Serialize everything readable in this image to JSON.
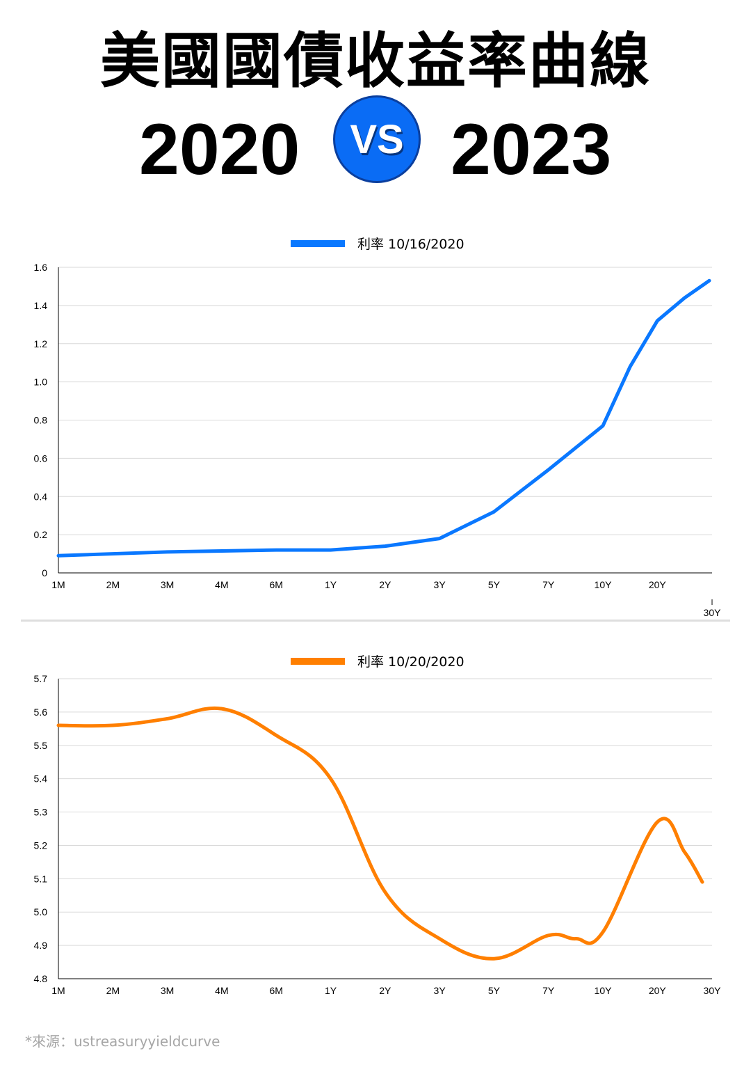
{
  "header": {
    "title": "美國國債收益率曲線",
    "year_left": "2020",
    "vs": "VS",
    "year_right": "2023"
  },
  "colors": {
    "accent_blue": "#0a6cf5",
    "series1": "#0a78ff",
    "series2": "#ff7f00",
    "grid": "#d9d9d9"
  },
  "chart_data": [
    {
      "type": "line",
      "x": [
        "1M",
        "2M",
        "3M",
        "4M",
        "6M",
        "1Y",
        "2Y",
        "3Y",
        "5Y",
        "7Y",
        "10Y",
        "20Y",
        "30Y"
      ],
      "series": [
        {
          "name": "利率 10/16/2020",
          "x": [
            "1M",
            "2M",
            "3M",
            "4M",
            "6M",
            "1Y",
            "2Y",
            "3Y",
            "5Y",
            "7Y",
            "10Y",
            "15Y",
            "20Y",
            "25Y",
            "30Y"
          ],
          "values": [
            0.09,
            0.1,
            0.11,
            0.115,
            0.12,
            0.12,
            0.14,
            0.18,
            0.32,
            0.54,
            0.77,
            1.08,
            1.32,
            1.44,
            1.53
          ]
        }
      ],
      "ylim": [
        0,
        1.6
      ],
      "yticks": [
        "0",
        "0.2",
        "0.4",
        "0.6",
        "0.8",
        "1.0",
        "1.2",
        "1.4",
        "1.6"
      ],
      "grid": true,
      "legend": "top-center"
    },
    {
      "type": "line",
      "x": [
        "1M",
        "2M",
        "3M",
        "4M",
        "6M",
        "1Y",
        "2Y",
        "3Y",
        "5Y",
        "7Y",
        "10Y",
        "20Y",
        "30Y"
      ],
      "series": [
        {
          "name": "利率 10/20/2020",
          "x": [
            "1M",
            "2M",
            "3M",
            "4M",
            "6M",
            "1Y",
            "2Y",
            "3Y",
            "5Y",
            "7Y",
            "8.5Y",
            "10Y",
            "20Y",
            "25Y",
            "30Y"
          ],
          "values": [
            5.56,
            5.56,
            5.58,
            5.61,
            5.53,
            5.4,
            5.06,
            4.92,
            4.86,
            4.93,
            4.92,
            4.94,
            5.27,
            5.18,
            5.09
          ]
        }
      ],
      "ylim": [
        4.8,
        5.7
      ],
      "yticks": [
        "4.8",
        "4.9",
        "5.0",
        "5.1",
        "5.2",
        "5.3",
        "5.4",
        "5.5",
        "5.6",
        "5.7"
      ],
      "grid": true,
      "legend": "top-center"
    }
  ],
  "source": "*來源：ustreasuryyieldcurve"
}
